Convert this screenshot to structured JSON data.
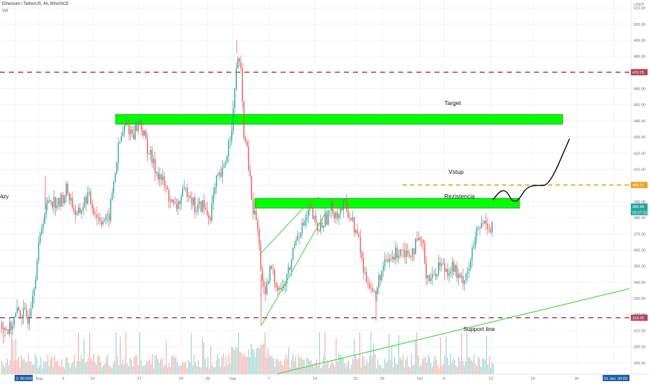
{
  "header": {
    "symbol_line": "Ethereum / TetherUS, 4h, BINANCE",
    "volume_label": "Vol",
    "left_cut_label": "ázy"
  },
  "colors": {
    "up_candle": "#26a69a",
    "down_candle": "#ef5350",
    "zone_fill": "#00ff00",
    "zone_stroke": "#009900",
    "dashed_level": "#b0455a",
    "entry_level": "#f0a020",
    "support_line": "#35d23a",
    "price_tag": "#26a69a",
    "time_tag": "#1e5fa8"
  },
  "chart_data": {
    "type": "candlestick",
    "x": [
      "14 Jul '20",
      "Aug",
      "5",
      "10",
      "17",
      "24",
      "28",
      "Sep",
      "7",
      "14",
      "21",
      "25",
      "Oct",
      "5",
      "12",
      "19",
      "26",
      "01 Jan '21"
    ],
    "ylim": [
      283,
      515
    ],
    "y_ticks": [
      290,
      300,
      310,
      320,
      330,
      340,
      350,
      360,
      370,
      380,
      390,
      400,
      410,
      420,
      430,
      440,
      450,
      460,
      470,
      480,
      490,
      500,
      510
    ],
    "y_unit": "USDT",
    "price_path": [
      [
        0,
        315
      ],
      [
        12,
        310
      ],
      [
        25,
        322
      ],
      [
        40,
        318
      ],
      [
        50,
        345
      ],
      [
        60,
        378
      ],
      [
        70,
        392
      ],
      [
        85,
        388
      ],
      [
        95,
        398
      ],
      [
        110,
        380
      ],
      [
        125,
        394
      ],
      [
        140,
        380
      ],
      [
        155,
        378
      ],
      [
        170,
        425
      ],
      [
        180,
        438
      ],
      [
        190,
        432
      ],
      [
        200,
        440
      ],
      [
        210,
        425
      ],
      [
        220,
        412
      ],
      [
        230,
        405
      ],
      [
        240,
        395
      ],
      [
        250,
        385
      ],
      [
        260,
        393
      ],
      [
        270,
        398
      ],
      [
        280,
        385
      ],
      [
        290,
        388
      ],
      [
        300,
        380
      ],
      [
        310,
        402
      ],
      [
        320,
        408
      ],
      [
        330,
        432
      ],
      [
        335,
        448
      ],
      [
        340,
        482
      ],
      [
        345,
        470
      ],
      [
        350,
        430
      ],
      [
        355,
        418
      ],
      [
        362,
        385
      ],
      [
        368,
        378
      ],
      [
        375,
        345
      ],
      [
        380,
        328
      ],
      [
        388,
        350
      ],
      [
        395,
        340
      ],
      [
        405,
        335
      ],
      [
        415,
        348
      ],
      [
        425,
        370
      ],
      [
        435,
        375
      ],
      [
        445,
        385
      ],
      [
        455,
        372
      ],
      [
        465,
        378
      ],
      [
        475,
        385
      ],
      [
        485,
        383
      ],
      [
        495,
        388
      ],
      [
        505,
        378
      ],
      [
        515,
        365
      ],
      [
        522,
        345
      ],
      [
        530,
        340
      ],
      [
        538,
        330
      ],
      [
        545,
        345
      ],
      [
        555,
        352
      ],
      [
        565,
        356
      ],
      [
        575,
        362
      ],
      [
        585,
        358
      ],
      [
        595,
        362
      ],
      [
        605,
        366
      ],
      [
        612,
        345
      ],
      [
        620,
        342
      ],
      [
        630,
        352
      ],
      [
        640,
        348
      ],
      [
        650,
        350
      ],
      [
        660,
        340
      ],
      [
        668,
        345
      ],
      [
        675,
        352
      ],
      [
        682,
        368
      ],
      [
        690,
        375
      ],
      [
        698,
        378
      ],
      [
        705,
        372
      ],
      [
        708,
        385
      ]
    ],
    "price_highs": [
      [
        65,
        406
      ],
      [
        340,
        490
      ],
      [
        445,
        388
      ],
      [
        375,
        330
      ]
    ],
    "price_lows": [
      [
        375,
        313
      ],
      [
        540,
        316
      ],
      [
        5,
        302
      ]
    ],
    "volume_range": [
      0,
      100
    ],
    "levels": [
      {
        "price": 470.25,
        "label": "470.25",
        "style": "dashed"
      },
      {
        "price": 318.0,
        "label": "318.00",
        "style": "dashed"
      },
      {
        "price": 400.31,
        "label": "400.31",
        "style": "entry"
      }
    ],
    "last_price": {
      "value": 386.94,
      "label": "386.94",
      "countdown": "03:07:03"
    },
    "zones": [
      {
        "name": "Target",
        "label": "Target",
        "y_top": 444,
        "y_bottom": 438,
        "x_from": 166,
        "x_to": 808
      },
      {
        "name": "Rezistencia",
        "label": "Rezistencia",
        "y_top": 392,
        "y_bottom": 386,
        "x_from": 366,
        "x_to": 746
      }
    ],
    "annotations": {
      "entry": "Vstup",
      "support": "Support line",
      "cursor_date": "01 Jan '21",
      "cursor_time": "00:00",
      "start_time": "00:00"
    }
  }
}
